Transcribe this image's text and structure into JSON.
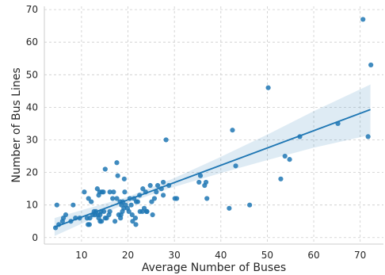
{
  "chart_data": {
    "type": "scatter",
    "title": "",
    "xlabel": "Average Number of Buses",
    "ylabel": "Number of Bus Lines",
    "xlim": [
      2,
      75
    ],
    "ylim": [
      -2,
      71
    ],
    "xticks": [
      10,
      20,
      30,
      40,
      50,
      60,
      70
    ],
    "yticks": [
      0,
      10,
      20,
      30,
      40,
      50,
      60,
      70
    ],
    "grid": true,
    "grid_style": "dashed",
    "legend": "none",
    "point_color": "#1f77b4",
    "regression": {
      "fit": "linear",
      "x_start": 4.2,
      "x_end": 72.2,
      "y_start": 3.2,
      "y_end": 39.3,
      "band_color": "#1f77b4",
      "band_lower": [
        [
          4.2,
          0.5
        ],
        [
          20,
          10.7
        ],
        [
          30,
          15.6
        ],
        [
          40,
          19.8
        ],
        [
          50,
          23.8
        ],
        [
          60,
          27.6
        ],
        [
          72.2,
          31.5
        ]
      ],
      "band_upper": [
        [
          4.2,
          6.0
        ],
        [
          20,
          12.5
        ],
        [
          30,
          18.3
        ],
        [
          40,
          24.8
        ],
        [
          50,
          31.6
        ],
        [
          60,
          38.8
        ],
        [
          72.2,
          47.0
        ]
      ]
    },
    "points": [
      [
        70.6,
        67
      ],
      [
        72.3,
        53
      ],
      [
        50.2,
        46
      ],
      [
        57.0,
        31
      ],
      [
        65.2,
        35
      ],
      [
        71.7,
        31
      ],
      [
        53.8,
        25
      ],
      [
        54.8,
        24
      ],
      [
        52.9,
        18
      ],
      [
        42.5,
        33
      ],
      [
        43.2,
        22
      ],
      [
        41.8,
        9
      ],
      [
        46.2,
        10
      ],
      [
        28.2,
        30
      ],
      [
        35.6,
        19
      ],
      [
        36.8,
        17
      ],
      [
        36.5,
        16
      ],
      [
        35.3,
        17
      ],
      [
        37.0,
        12
      ],
      [
        30.1,
        12
      ],
      [
        30.5,
        12
      ],
      [
        27.6,
        17
      ],
      [
        27.2,
        15
      ],
      [
        26.4,
        16
      ],
      [
        28.8,
        16
      ],
      [
        27.6,
        13
      ],
      [
        24.8,
        16
      ],
      [
        23.8,
        14
      ],
      [
        23.2,
        15
      ],
      [
        22.5,
        13
      ],
      [
        25.1,
        11
      ],
      [
        25.3,
        7
      ],
      [
        24.0,
        8
      ],
      [
        23.5,
        9
      ],
      [
        23.1,
        8
      ],
      [
        22.6,
        8
      ],
      [
        24.1,
        8
      ],
      [
        21.8,
        11
      ],
      [
        20.7,
        10
      ],
      [
        21.7,
        4
      ],
      [
        20.9,
        7
      ],
      [
        21.0,
        5
      ],
      [
        20.2,
        8
      ],
      [
        19.5,
        10
      ],
      [
        18.6,
        10
      ],
      [
        18.3,
        11
      ],
      [
        18.9,
        11
      ],
      [
        17.6,
        12
      ],
      [
        16.9,
        14
      ],
      [
        16.1,
        14
      ],
      [
        17.6,
        23
      ],
      [
        17.8,
        19
      ],
      [
        19.2,
        18
      ],
      [
        19.3,
        14
      ],
      [
        18.0,
        7
      ],
      [
        18.5,
        7
      ],
      [
        18.4,
        6
      ],
      [
        17.2,
        5
      ],
      [
        16.1,
        8
      ],
      [
        15.9,
        7
      ],
      [
        15.1,
        21
      ],
      [
        14.4,
        14
      ],
      [
        13.9,
        14
      ],
      [
        13.4,
        15
      ],
      [
        14.7,
        14
      ],
      [
        13.7,
        13
      ],
      [
        14.2,
        8
      ],
      [
        14.8,
        8
      ],
      [
        14.0,
        7
      ],
      [
        13.5,
        7
      ],
      [
        13.1,
        8
      ],
      [
        12.7,
        8
      ],
      [
        12.4,
        7
      ],
      [
        11.8,
        6
      ],
      [
        11.2,
        6
      ],
      [
        12.9,
        7
      ],
      [
        13.7,
        6
      ],
      [
        14.3,
        5
      ],
      [
        15.1,
        6
      ],
      [
        15.4,
        6
      ],
      [
        14.0,
        5
      ],
      [
        11.7,
        4
      ],
      [
        11.4,
        4
      ],
      [
        10.6,
        14
      ],
      [
        11.5,
        12
      ],
      [
        12.1,
        11
      ],
      [
        9.6,
        6
      ],
      [
        8.7,
        6
      ],
      [
        8.2,
        10
      ],
      [
        7.7,
        5
      ],
      [
        6.6,
        7
      ],
      [
        6.1,
        6
      ],
      [
        5.9,
        5
      ],
      [
        5.1,
        4
      ],
      [
        4.7,
        10
      ],
      [
        4.4,
        3
      ],
      [
        16.7,
        12
      ],
      [
        19.9,
        9
      ],
      [
        21.3,
        12
      ],
      [
        22.1,
        11
      ],
      [
        26.1,
        14
      ],
      [
        25.7,
        12
      ],
      [
        19.1,
        9
      ],
      [
        21.6,
        6
      ],
      [
        18.8,
        8
      ],
      [
        20.4,
        12
      ]
    ]
  }
}
